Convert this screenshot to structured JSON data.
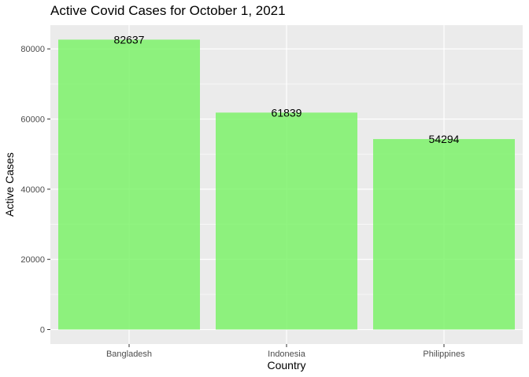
{
  "chart_data": {
    "type": "bar",
    "title": "Active Covid Cases for October 1, 2021",
    "xlabel": "Country",
    "ylabel": "Active Cases",
    "categories": [
      "Bangladesh",
      "Indonesia",
      "Philippines"
    ],
    "values": [
      82637,
      61839,
      54294
    ],
    "data_labels": [
      "82637",
      "61839",
      "54294"
    ],
    "yticks": [
      0,
      20000,
      40000,
      60000,
      80000
    ],
    "ytick_labels": [
      "0",
      "20000",
      "40000",
      "60000",
      "80000"
    ],
    "ylim": [
      -4132,
      86769
    ],
    "grid": true,
    "bar_color": "#7CF26A",
    "panel_color": "#EBEBEB"
  }
}
